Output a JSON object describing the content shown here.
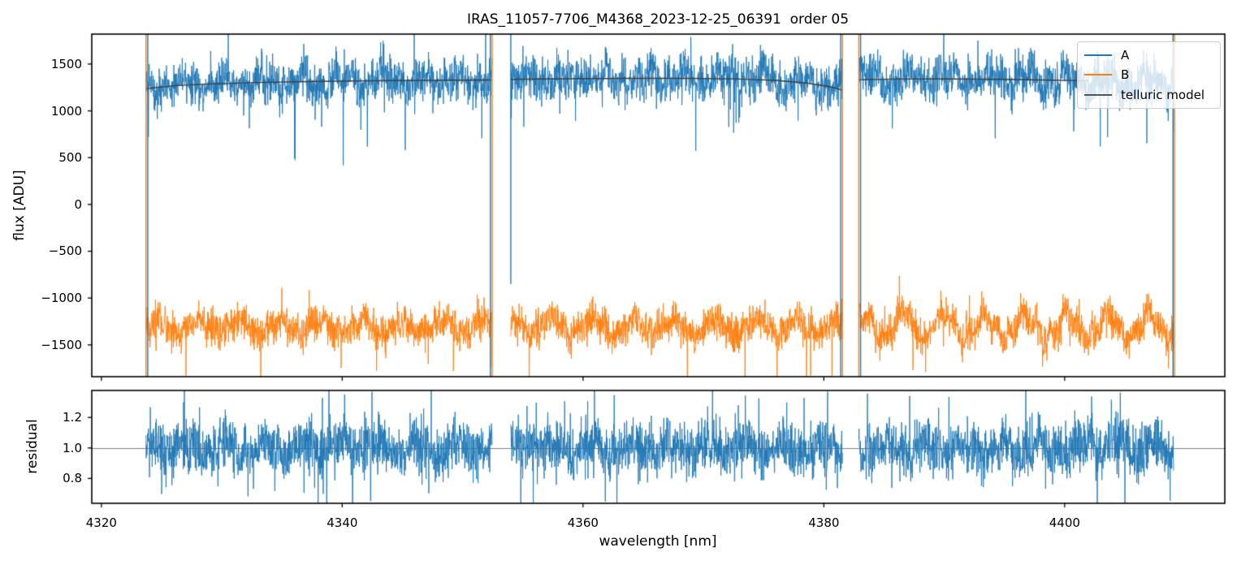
{
  "chart_data": {
    "type": "line",
    "title": "IRAS_11057-7706_M4368_2023-12-25_06391  order 05",
    "xlabel": "wavelength [nm]",
    "xlim": [
      4319.2,
      4413.3
    ],
    "xticks": {
      "values": [
        4320,
        4340,
        4360,
        4380,
        4400
      ],
      "labels": [
        "4320",
        "4340",
        "4360",
        "4380",
        "4400"
      ]
    },
    "panels": [
      {
        "name": "flux",
        "ylabel": "flux [ADU]",
        "ylim": [
          -1840,
          1820
        ],
        "yticks": {
          "values": [
            1500,
            1000,
            500,
            0,
            -500,
            -1000,
            -1500
          ],
          "labels": [
            "1500",
            "1000",
            "500",
            "0",
            "−500",
            "−1000",
            "−1500"
          ]
        }
      },
      {
        "name": "residual",
        "ylabel": "residual",
        "ylim": [
          0.637,
          1.377
        ],
        "yticks": {
          "values": [
            1.2,
            1.0,
            0.8
          ],
          "labels": [
            "1.2",
            "1.0",
            "0.8"
          ]
        },
        "hline": {
          "y": 1.0,
          "color": "#808080"
        }
      }
    ],
    "segments": [
      [
        4323.7,
        4352.45
      ],
      [
        4354.0,
        4381.55
      ],
      [
        4382.9,
        4409.05
      ]
    ],
    "telluric_model": {
      "name": "telluric model",
      "color": "#3d3d3d",
      "control_points": [
        [
          [
            4323.7,
            1237
          ],
          [
            4326,
            1268
          ],
          [
            4329,
            1288
          ],
          [
            4333,
            1303
          ],
          [
            4338,
            1315
          ],
          [
            4344,
            1324
          ],
          [
            4352.45,
            1330
          ]
        ],
        [
          [
            4354.0,
            1336
          ],
          [
            4359,
            1343
          ],
          [
            4364,
            1347
          ],
          [
            4369,
            1347
          ],
          [
            4373,
            1340
          ],
          [
            4376,
            1325
          ],
          [
            4378.5,
            1298
          ],
          [
            4380.5,
            1258
          ],
          [
            4381.55,
            1222
          ]
        ],
        [
          [
            4382.9,
            1332
          ],
          [
            4386,
            1340
          ],
          [
            4390,
            1341
          ],
          [
            4395,
            1336
          ],
          [
            4399,
            1328
          ],
          [
            4402,
            1320
          ]
        ]
      ]
    },
    "series": [
      {
        "name": "A",
        "panel": "flux",
        "color": "#1f77b4",
        "follows_model": true,
        "baseline": 1300,
        "noise_sd": 115,
        "seed": 41,
        "wiggles": [
          {
            "amp": 55,
            "period": 3.3
          },
          {
            "amp": 42,
            "period": 1.3
          }
        ],
        "wiggle_amp_by_segment": [
          1.0,
          1.0,
          1.35
        ],
        "phases": [
          0.7,
          2.9,
          5.1
        ],
        "spike_down": {
          "p": 0.012,
          "min": 180,
          "max": 720
        },
        "spike_up": {
          "p": 0.006,
          "min": 160,
          "max": 560
        }
      },
      {
        "name": "B",
        "panel": "flux",
        "color": "#ff7f0e",
        "follows_model": false,
        "baseline": -1308,
        "noise_sd": 95,
        "seed": 137,
        "wiggles": [
          {
            "amp": 85,
            "period": 3.4
          },
          {
            "amp": 40,
            "period": 1.15
          }
        ],
        "wiggle_amp_by_segment": [
          0.8,
          0.9,
          1.45
        ],
        "phases": [
          1.9,
          4.2,
          0.4
        ],
        "spike_down": {
          "p": 0.01,
          "min": 200,
          "max": 650
        },
        "spike_up": {
          "p": 0.004,
          "min": 150,
          "max": 450
        }
      },
      {
        "name": "residual",
        "panel": "residual",
        "color": "#1f77b4",
        "follows_model": false,
        "baseline": 1.0,
        "noise_sd": 0.085,
        "seed": 88,
        "wiggles": [
          {
            "amp": 0.032,
            "period": 3.2
          },
          {
            "amp": 0.02,
            "period": 1.4
          }
        ],
        "wiggle_amp_by_segment": [
          1.0,
          1.0,
          1.3
        ],
        "phases": [
          0.2,
          3.3,
          5.6
        ],
        "spike_down": {
          "p": 0.013,
          "min": 0.1,
          "max": 0.4
        },
        "spike_up": {
          "p": 0.012,
          "min": 0.1,
          "max": 0.36
        }
      }
    ],
    "edge_lines": [
      {
        "x": 4323.7,
        "color": "#ff7f0e"
      },
      {
        "x": 4323.85,
        "color": "#1f77b4"
      },
      {
        "x": 4352.3,
        "color": "#1f77b4"
      },
      {
        "x": 4352.45,
        "color": "#ff7f0e"
      },
      {
        "x": 4354.0,
        "color": "#1f77b4",
        "y_from": 1820,
        "y_to": -850
      },
      {
        "x": 4381.4,
        "color": "#1f77b4"
      },
      {
        "x": 4381.55,
        "color": "#ff7f0e"
      },
      {
        "x": 4382.9,
        "color": "#ff7f0e"
      },
      {
        "x": 4383.05,
        "color": "#1f77b4"
      },
      {
        "x": 4409.0,
        "color": "#1f77b4"
      },
      {
        "x": 4409.12,
        "color": "#ff7f0e"
      }
    ],
    "legend": {
      "items": [
        {
          "label": "A",
          "color": "#1f77b4"
        },
        {
          "label": "B",
          "color": "#ff7f0e"
        },
        {
          "label": "telluric model",
          "color": "#555555"
        }
      ]
    },
    "colors": {
      "axis": "#000000",
      "background": "#ffffff"
    }
  }
}
